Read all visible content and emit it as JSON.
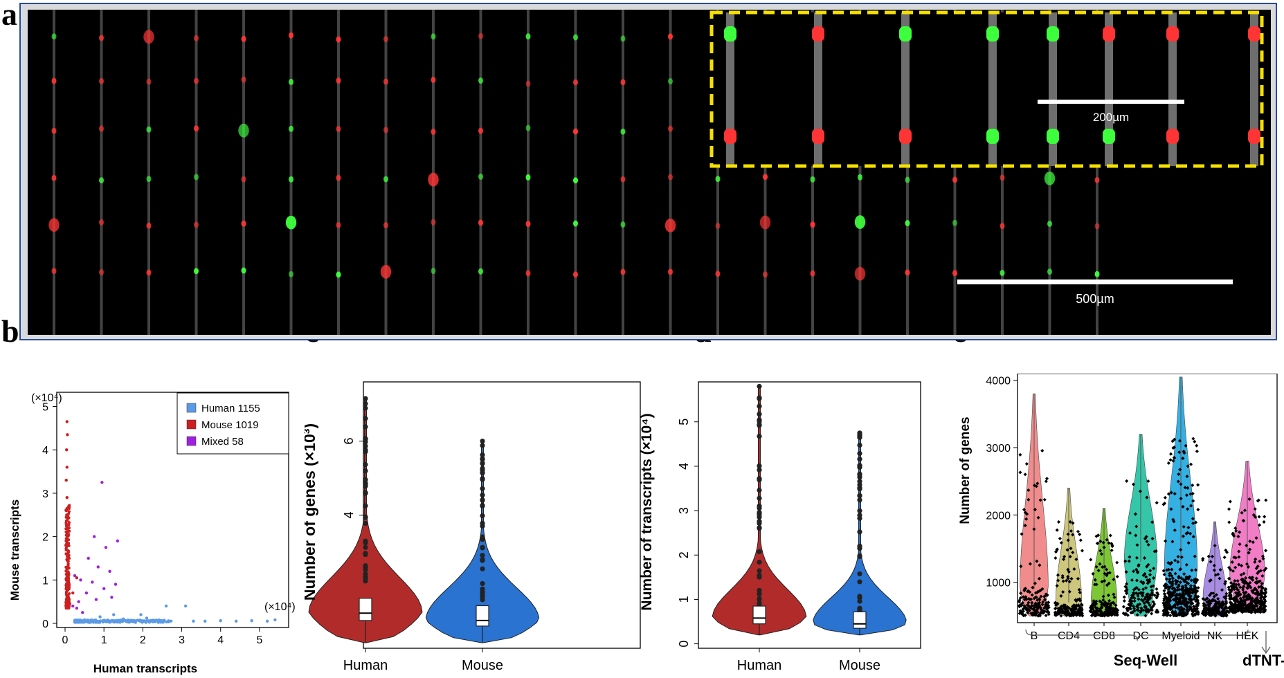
{
  "panels": {
    "a": {
      "letter": "a",
      "scale_bar_inset": "200µm",
      "scale_bar_main": "500µm"
    },
    "b": {
      "letter": "b"
    },
    "c": {
      "letter": "c"
    },
    "d": {
      "letter": "d"
    },
    "e": {
      "letter": "e"
    }
  },
  "colors": {
    "human": "#5a9ae6",
    "mouse": "#cc2020",
    "mixed": "#a020e0",
    "violin_human": "#b22b2b",
    "violin_mouse": "#2a73d0",
    "inset_border": "#f5e000",
    "bead_green": "#3dff3d",
    "bead_red": "#ff3535"
  },
  "chart_data": [
    {
      "id": "b",
      "type": "scatter",
      "xlabel": "Human transcripts",
      "ylabel": "Mouse transcripts",
      "x_multiplier": "(×10⁴)",
      "y_multiplier": "(×10⁴)",
      "xlim": [
        0,
        5.5
      ],
      "ylim": [
        0,
        5.2
      ],
      "xticks": [
        "0",
        "1",
        "2",
        "3",
        "4",
        "5"
      ],
      "yticks": [
        "0",
        "1",
        "2",
        "3",
        "4",
        "5"
      ],
      "legend": [
        {
          "label": "Human 1155",
          "color": "#5a9ae6"
        },
        {
          "label": "Mouse 1019",
          "color": "#cc2020"
        },
        {
          "label": "Mixed 58",
          "color": "#a020e0"
        }
      ],
      "series": [
        {
          "name": "Human",
          "points": [
            [
              0.3,
              0.05
            ],
            [
              0.5,
              0.08
            ],
            [
              0.8,
              0.04
            ],
            [
              1.1,
              0.06
            ],
            [
              1.4,
              0.05
            ],
            [
              1.7,
              0.07
            ],
            [
              2.0,
              0.05
            ],
            [
              2.3,
              0.06
            ],
            [
              2.6,
              0.4
            ],
            [
              2.7,
              0.05
            ],
            [
              3.1,
              0.4
            ],
            [
              3.3,
              0.05
            ],
            [
              3.6,
              0.05
            ],
            [
              4.0,
              0.06
            ],
            [
              4.4,
              0.05
            ],
            [
              4.8,
              0.06
            ],
            [
              5.2,
              0.05
            ],
            [
              5.4,
              0.08
            ],
            [
              1.5,
              0.1
            ],
            [
              2.1,
              0.12
            ],
            [
              0.9,
              0.15
            ],
            [
              1.25,
              0.2
            ],
            [
              1.95,
              0.2
            ]
          ]
        },
        {
          "name": "Mouse",
          "points": [
            [
              0.05,
              4.65
            ],
            [
              0.06,
              4.35
            ],
            [
              0.04,
              4.0
            ],
            [
              0.05,
              3.6
            ],
            [
              0.03,
              3.3
            ],
            [
              0.05,
              2.9
            ],
            [
              0.04,
              2.5
            ],
            [
              0.06,
              2.2
            ],
            [
              0.05,
              1.9
            ],
            [
              0.03,
              1.6
            ],
            [
              0.07,
              1.3
            ],
            [
              0.05,
              1.0
            ],
            [
              0.08,
              0.8
            ],
            [
              0.06,
              0.6
            ],
            [
              0.1,
              0.5
            ],
            [
              0.12,
              0.45
            ],
            [
              0.02,
              1.8
            ],
            [
              0.09,
              2.05
            ],
            [
              0.2,
              0.7
            ],
            [
              0.3,
              1.05
            ]
          ]
        },
        {
          "name": "Mixed",
          "points": [
            [
              0.95,
              3.25
            ],
            [
              0.75,
              2.0
            ],
            [
              1.35,
              1.9
            ],
            [
              1.05,
              1.75
            ],
            [
              0.6,
              1.5
            ],
            [
              0.85,
              1.3
            ],
            [
              1.15,
              1.2
            ],
            [
              0.4,
              1.0
            ],
            [
              0.7,
              0.95
            ],
            [
              1.3,
              0.9
            ],
            [
              1.0,
              0.8
            ],
            [
              0.55,
              0.7
            ],
            [
              0.35,
              0.5
            ],
            [
              0.8,
              0.55
            ],
            [
              1.2,
              0.6
            ],
            [
              0.2,
              0.4
            ],
            [
              0.25,
              1.1
            ],
            [
              0.3,
              0.35
            ],
            [
              0.45,
              0.25
            ]
          ]
        }
      ]
    },
    {
      "id": "c",
      "type": "violin",
      "ylabel": "Number of  genes (×10³)",
      "ylim": [
        0.4,
        7.6
      ],
      "yticks": [
        "2",
        "4",
        "6"
      ],
      "categories": [
        "Human",
        "Mouse"
      ],
      "series": [
        {
          "name": "Human",
          "min": 0.55,
          "q1": 1.15,
          "median": 1.35,
          "q3": 1.75,
          "max": 7.15,
          "color": "#b22b2b"
        },
        {
          "name": "Mouse",
          "min": 0.55,
          "q1": 1.0,
          "median": 1.15,
          "q3": 1.55,
          "max": 6.0,
          "color": "#2a73d0"
        }
      ]
    },
    {
      "id": "d",
      "type": "violin",
      "ylabel": "Number of  transcripts (×10⁴)",
      "ylim": [
        -0.1,
        5.9
      ],
      "yticks": [
        "0",
        "1",
        "2",
        "3",
        "4",
        "5"
      ],
      "categories": [
        "Human",
        "Mouse"
      ],
      "series": [
        {
          "name": "Human",
          "min": 0.2,
          "q1": 0.45,
          "median": 0.58,
          "q3": 0.85,
          "max": 5.8,
          "color": "#b22b2b"
        },
        {
          "name": "Mouse",
          "min": 0.2,
          "q1": 0.35,
          "median": 0.45,
          "q3": 0.72,
          "max": 4.75,
          "color": "#2a73d0"
        }
      ]
    },
    {
      "id": "e",
      "type": "violin-jitter",
      "ylabel": "Number of  genes",
      "ylim": [
        400,
        4100
      ],
      "yticks": [
        "1000",
        "2000",
        "3000",
        "4000"
      ],
      "categories": [
        "B",
        "CD4",
        "CD8",
        "DC",
        "Myeloid",
        "NK",
        "HEK"
      ],
      "groups": [
        {
          "name": "B",
          "min": 500,
          "median": 900,
          "max": 3800,
          "color": "#f08080"
        },
        {
          "name": "CD4",
          "min": 500,
          "median": 700,
          "max": 2400,
          "color": "#c8c070"
        },
        {
          "name": "CD8",
          "min": 500,
          "median": 700,
          "max": 2100,
          "color": "#70c020"
        },
        {
          "name": "DC",
          "min": 500,
          "median": 1300,
          "max": 3200,
          "color": "#20c0a0"
        },
        {
          "name": "Myeloid",
          "min": 500,
          "median": 1200,
          "max": 4050,
          "color": "#20a8e0"
        },
        {
          "name": "NK",
          "min": 500,
          "median": 750,
          "max": 1900,
          "color": "#a080e0"
        },
        {
          "name": "HEK",
          "min": 550,
          "median": 1100,
          "max": 2800,
          "color": "#f070c0"
        }
      ],
      "bracket_labels": {
        "seqwell": "Seq-Well",
        "dtnt": "dTNT-seq"
      }
    }
  ]
}
